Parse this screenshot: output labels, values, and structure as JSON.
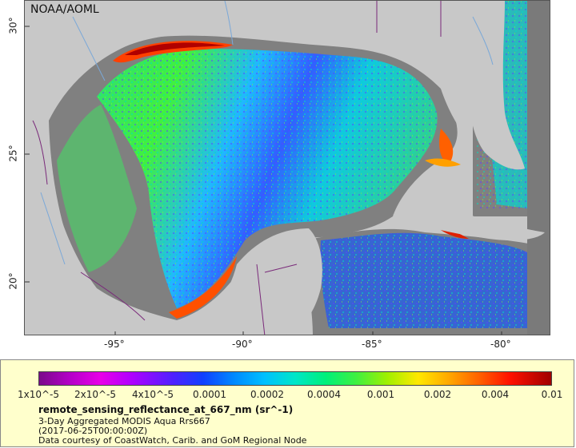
{
  "map": {
    "agency": "NOAA/AOML",
    "colors": {
      "land": "#c8c8c8",
      "no_data": "#808080",
      "border": "#7a2a7a",
      "river": "#7aa8d8"
    },
    "lat_ticks": [
      "30°",
      "25°",
      "20°"
    ],
    "lon_ticks": [
      "-95°",
      "-90°",
      "-85°",
      "-80°"
    ]
  },
  "legend": {
    "colorbar_labels": [
      "1x10^-5",
      "2x10^-5",
      "4x10^-5",
      "0.0001",
      "0.0002",
      "0.0004",
      "0.001",
      "0.002",
      "0.004",
      "0.01"
    ],
    "variable": "remote_sensing_reflectance_at_667_nm (sr^-1)",
    "subtitle": "3-Day Aggregated MODIS Aqua Rrs667",
    "date": "(2017-06-25T00:00:00Z)",
    "credit": "Data courtesy of CoastWatch, Carib. and GoM Regional Node"
  }
}
